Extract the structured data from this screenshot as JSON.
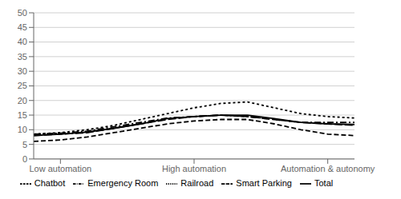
{
  "chart_data": {
    "type": "line",
    "x": [
      0,
      1,
      2,
      3,
      4,
      5,
      6,
      7,
      8,
      9,
      10,
      11,
      12
    ],
    "series": [
      {
        "name": "Railroad",
        "color": "#000000",
        "line_style": "dotted",
        "values": [
          8.5,
          9.0,
          10.0,
          11.5,
          13.5,
          15.5,
          17.5,
          19.0,
          19.5,
          17.5,
          15.5,
          14.5,
          14.0
        ]
      },
      {
        "name": "Smart Parking",
        "color": "#000000",
        "line_style": "longdash",
        "values": [
          8.0,
          8.5,
          9.0,
          10.5,
          12.0,
          13.5,
          14.5,
          15.0,
          14.5,
          13.5,
          12.5,
          12.0,
          11.5
        ]
      },
      {
        "name": "Emergency Room",
        "color": "#000000",
        "line_style": "dashdot",
        "values": [
          8.5,
          8.8,
          9.5,
          11.0,
          12.5,
          14.0,
          14.5,
          15.0,
          14.5,
          13.5,
          12.5,
          12.5,
          12.5
        ]
      },
      {
        "name": "Chatbot",
        "color": "#000000",
        "line_style": "dashed",
        "values": [
          6.0,
          6.5,
          7.5,
          9.0,
          10.5,
          12.0,
          13.0,
          13.5,
          13.5,
          12.0,
          10.0,
          8.5,
          8.0
        ]
      },
      {
        "name": "Total",
        "color": "#000000",
        "line_style": "solid",
        "values": [
          8.0,
          8.5,
          9.2,
          10.5,
          12.0,
          13.8,
          14.5,
          15.0,
          15.0,
          13.8,
          12.5,
          12.0,
          11.8
        ]
      }
    ],
    "xlim": [
      0,
      12
    ],
    "xticks": [
      {
        "value": 1,
        "label": "Low automation"
      },
      {
        "value": 6,
        "label": "High automation"
      },
      {
        "value": 11,
        "label": "Automation & autonomy"
      }
    ],
    "ylim": [
      0,
      50
    ],
    "yticks": [
      0,
      5,
      10,
      15,
      20,
      25,
      30,
      35,
      40,
      45,
      50
    ],
    "grid": true,
    "legend": "bottom"
  }
}
